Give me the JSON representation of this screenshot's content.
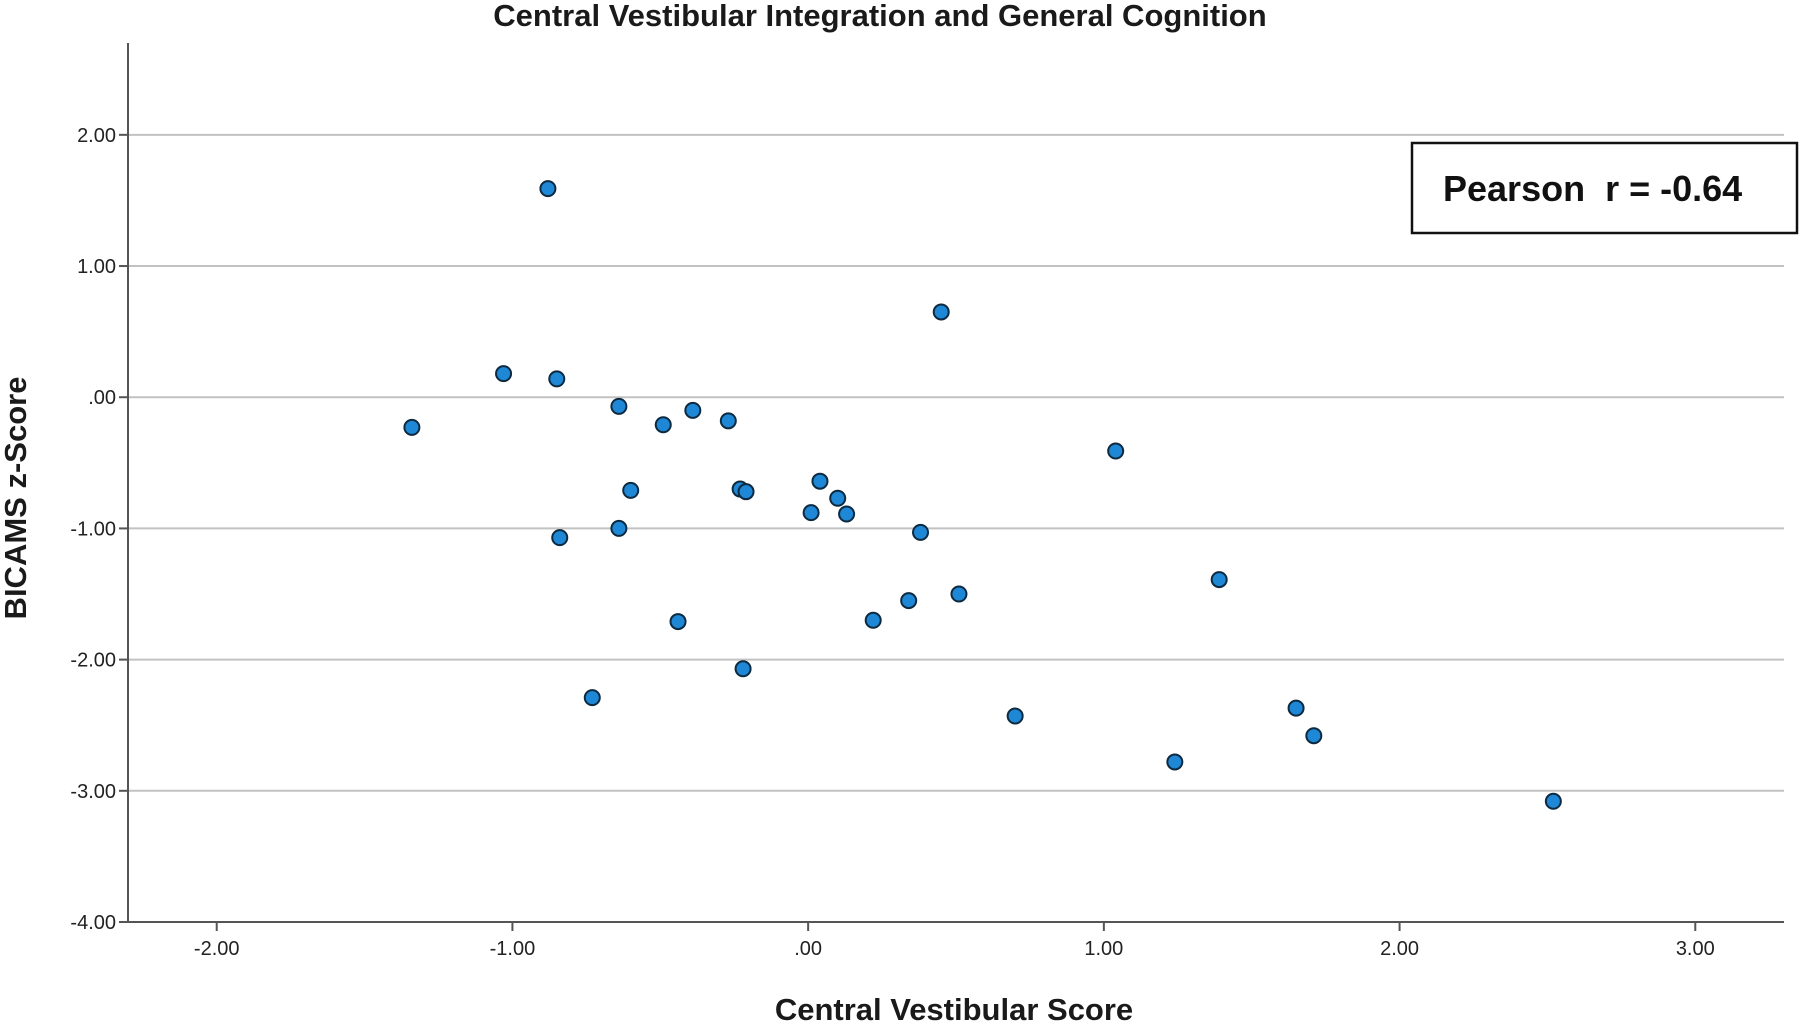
{
  "chart_data": {
    "type": "scatter",
    "title": "Central Vestibular Integration and General Cognition",
    "xlabel": "Central Vestibular Score",
    "ylabel": "BICAMS z-Score",
    "xlim": [
      -2.3,
      3.3
    ],
    "ylim": [
      -4.0,
      2.7
    ],
    "xticks": [
      -2,
      -1,
      0,
      1,
      2,
      3
    ],
    "yticks": [
      2,
      1,
      0,
      -1,
      -2,
      -3,
      -4
    ],
    "xtick_labels": [
      "-2.00",
      "-1.00",
      ".00",
      "1.00",
      "2.00",
      "3.00"
    ],
    "ytick_labels": [
      "2.00",
      "1.00",
      ".00",
      "-1.00",
      "-2.00",
      "-3.00",
      "-4.00"
    ],
    "grid": {
      "horizontal": true,
      "vertical": false
    },
    "annotation": "Pearson  r = -0.64",
    "annotation_position": "top-right",
    "marker_color": "#1e88d6",
    "marker_edge_color": "#0d2a40",
    "points": [
      {
        "x": -0.88,
        "y": 1.59
      },
      {
        "x": 0.45,
        "y": 0.65
      },
      {
        "x": -1.03,
        "y": 0.18
      },
      {
        "x": -0.85,
        "y": 0.14
      },
      {
        "x": -0.64,
        "y": -0.07
      },
      {
        "x": -0.39,
        "y": -0.1
      },
      {
        "x": -0.27,
        "y": -0.18
      },
      {
        "x": -0.49,
        "y": -0.21
      },
      {
        "x": -1.34,
        "y": -0.23
      },
      {
        "x": 1.04,
        "y": -0.41
      },
      {
        "x": 0.04,
        "y": -0.64
      },
      {
        "x": -0.23,
        "y": -0.7
      },
      {
        "x": -0.6,
        "y": -0.71
      },
      {
        "x": -0.21,
        "y": -0.72
      },
      {
        "x": 0.1,
        "y": -0.77
      },
      {
        "x": 0.01,
        "y": -0.88
      },
      {
        "x": 0.13,
        "y": -0.89
      },
      {
        "x": -0.64,
        "y": -1.0
      },
      {
        "x": 0.38,
        "y": -1.03
      },
      {
        "x": -0.84,
        "y": -1.07
      },
      {
        "x": 1.39,
        "y": -1.39
      },
      {
        "x": 0.51,
        "y": -1.5
      },
      {
        "x": 0.34,
        "y": -1.55
      },
      {
        "x": 0.22,
        "y": -1.7
      },
      {
        "x": -0.44,
        "y": -1.71
      },
      {
        "x": -0.22,
        "y": -2.07
      },
      {
        "x": -0.73,
        "y": -2.29
      },
      {
        "x": 1.65,
        "y": -2.37
      },
      {
        "x": 0.7,
        "y": -2.43
      },
      {
        "x": 1.71,
        "y": -2.58
      },
      {
        "x": 1.24,
        "y": -2.78
      },
      {
        "x": 2.52,
        "y": -3.08
      }
    ]
  }
}
